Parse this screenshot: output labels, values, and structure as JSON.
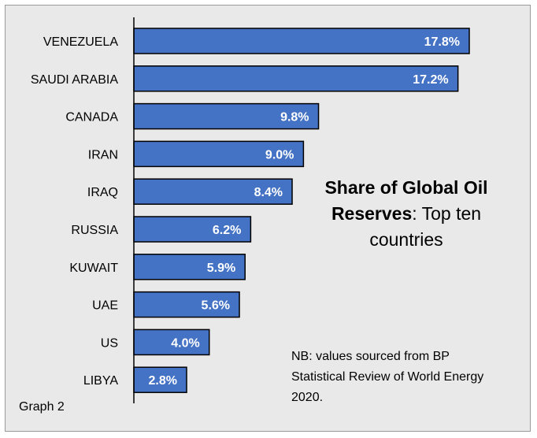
{
  "chart_data": {
    "type": "bar",
    "orientation": "horizontal",
    "categories": [
      "VENEZUELA",
      "SAUDI ARABIA",
      "CANADA",
      "IRAN",
      "IRAQ",
      "RUSSIA",
      "KUWAIT",
      "UAE",
      "US",
      "LIBYA"
    ],
    "values": [
      17.8,
      17.2,
      9.8,
      9.0,
      8.4,
      6.2,
      5.9,
      5.6,
      4.0,
      2.8
    ],
    "value_labels": [
      "17.8%",
      "17.2%",
      "9.8%",
      "9.0%",
      "8.4%",
      "6.2%",
      "5.9%",
      "5.6%",
      "4.0%",
      "2.8%"
    ],
    "unit": "%",
    "grid": false,
    "bar_color": "#4472c4",
    "title_bold": "Share of Global Oil Reserves",
    "title_rest": ": Top ten countries"
  },
  "note": "NB: values sourced from BP Statistical Review of World Energy 2020.",
  "graph_label": "Graph 2"
}
